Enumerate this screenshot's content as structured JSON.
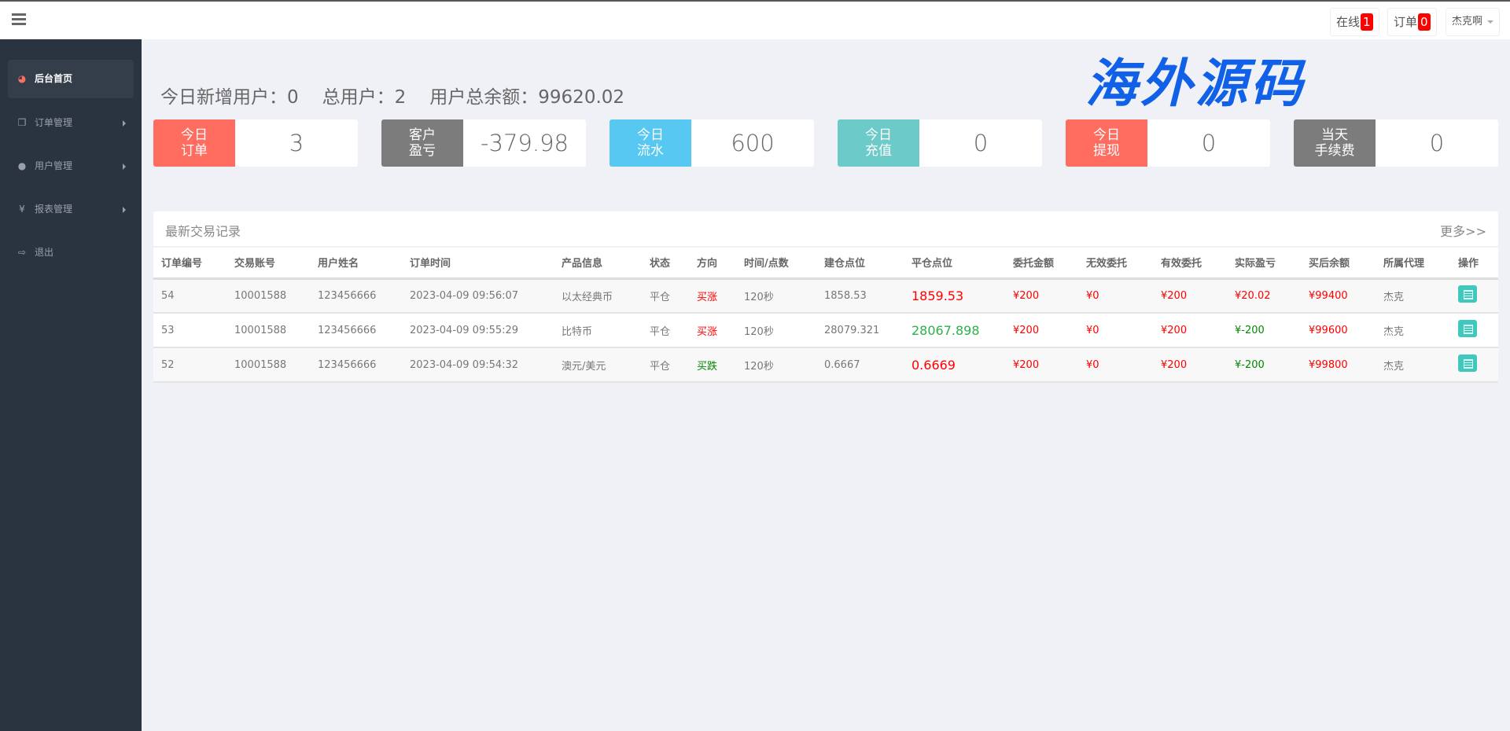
{
  "header": {
    "online_label": "在线",
    "online_count": "1",
    "orders_label": "订单",
    "orders_count": "0",
    "user": "杰克啊"
  },
  "sidebar": {
    "items": [
      {
        "label": "后台首页",
        "icon": "dashboard-icon"
      },
      {
        "label": "订单管理",
        "icon": "files-icon"
      },
      {
        "label": "用户管理",
        "icon": "user-icon"
      },
      {
        "label": "报表管理",
        "icon": "yen-icon"
      },
      {
        "label": "退出",
        "icon": "sign-out-icon"
      }
    ]
  },
  "stats": {
    "new_users": "今日新增用户：0",
    "total_users": "总用户：2",
    "total_balance": "用户总余额：99620.02"
  },
  "watermark": "海外源码",
  "cards": [
    {
      "l1": "今日",
      "l2": "订单",
      "value": "3",
      "color": "#ff6c60"
    },
    {
      "l1": "客户",
      "l2": "盈亏",
      "value": "-379.98",
      "color": "#7c7c7c"
    },
    {
      "l1": "今日",
      "l2": "流水",
      "value": "600",
      "color": "#57c8f2"
    },
    {
      "l1": "今日",
      "l2": "充值",
      "value": "0",
      "color": "#6ccac9"
    },
    {
      "l1": "今日",
      "l2": "提现",
      "value": "0",
      "color": "#ff6c60"
    },
    {
      "l1": "当天",
      "l2": "手续费",
      "value": "0",
      "color": "#7c7c7c"
    }
  ],
  "panel": {
    "title": "最新交易记录",
    "more": "更多>>",
    "columns": [
      "订单编号",
      "交易账号",
      "用户姓名",
      "订单时间",
      "产品信息",
      "状态",
      "方向",
      "时间/点数",
      "建仓点位",
      "平仓点位",
      "委托金额",
      "无效委托",
      "有效委托",
      "实际盈亏",
      "买后余额",
      "所属代理",
      "操作"
    ],
    "rows": [
      [
        "54",
        "10001588",
        "123456666",
        "2023-04-09 09:56:07",
        "以太经典币",
        "平仓",
        "买涨",
        "120秒",
        "1858.53",
        "1859.53",
        "¥200",
        "¥0",
        "¥200",
        "¥20.02",
        "¥99400",
        "杰克"
      ],
      [
        "53",
        "10001588",
        "123456666",
        "2023-04-09 09:55:29",
        "比特币",
        "平仓",
        "买涨",
        "120秒",
        "28079.321",
        "28067.898",
        "¥200",
        "¥0",
        "¥200",
        "¥-200",
        "¥99600",
        "杰克"
      ],
      [
        "52",
        "10001588",
        "123456666",
        "2023-04-09 09:54:32",
        "澳元/美元",
        "平仓",
        "买跌",
        "120秒",
        "0.6667",
        "0.6669",
        "¥200",
        "¥0",
        "¥200",
        "¥-200",
        "¥99800",
        "杰克"
      ]
    ]
  }
}
